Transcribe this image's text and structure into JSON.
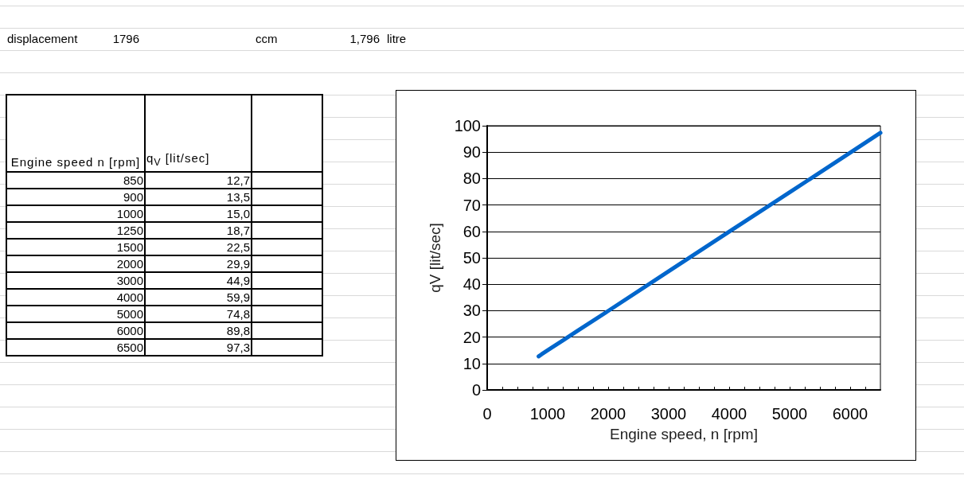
{
  "chart_data": [
    {
      "type": "other",
      "xlabel": "Engine speed n [rpm]",
      "ylabel": "q$_{V}$ [lit/sec]",
      "annotations": [
        "displacement",
        "1796",
        "ccm",
        "1,796",
        "litre"
      ],
      "categories": [
        "850",
        "900",
        "1000",
        "1250",
        "1500",
        "2000",
        "3000",
        "4000",
        "5000",
        "6000",
        "6500"
      ],
      "value_labels": [
        "12,7",
        "13,5",
        "15,0",
        "18,7",
        "22,5",
        "29,9",
        "44,9",
        "59,9",
        "74,8",
        "89,8",
        "97,3"
      ]
    },
    {
      "type": "line",
      "xlabel": "Engine speed, n [rpm]",
      "ylabel": "qV [lit/sec]",
      "x": [
        850,
        900,
        1000,
        1250,
        1500,
        2000,
        3000,
        4000,
        5000,
        6000,
        6500
      ],
      "series": [
        {
          "color": "#0066cc",
          "values": [
            12.7,
            13.5,
            15.0,
            18.7,
            22.5,
            29.9,
            44.9,
            59.9,
            74.8,
            89.8,
            97.3
          ]
        }
      ],
      "xlim": [
        0,
        6500
      ],
      "xticks": [
        0,
        {
          "value": 250,
          "label": null
        },
        {
          "value": 500,
          "label": null
        },
        {
          "value": 750,
          "label": null
        },
        1000,
        {
          "value": 1250,
          "label": null
        },
        {
          "value": 1500,
          "label": null
        },
        {
          "value": 1750,
          "label": null
        },
        2000,
        {
          "value": 2250,
          "label": null
        },
        {
          "value": 2500,
          "label": null
        },
        {
          "value": 2750,
          "label": null
        },
        3000,
        {
          "value": 3250,
          "label": null
        },
        {
          "value": 3500,
          "label": null
        },
        {
          "value": 3750,
          "label": null
        },
        4000,
        {
          "value": 4250,
          "label": null
        },
        {
          "value": 4500,
          "label": null
        },
        {
          "value": 4750,
          "label": null
        },
        5000,
        {
          "value": 5250,
          "label": null
        },
        {
          "value": 5500,
          "label": null
        },
        {
          "value": 5750,
          "label": null
        },
        6000,
        {
          "value": 6250,
          "label": null
        }
      ],
      "ylim": [
        0,
        100
      ],
      "yticks": [
        0,
        10,
        20,
        30,
        40,
        50,
        60,
        70,
        80,
        90,
        100
      ],
      "grid": "y",
      "marker": "none",
      "line_style": "solid"
    }
  ]
}
